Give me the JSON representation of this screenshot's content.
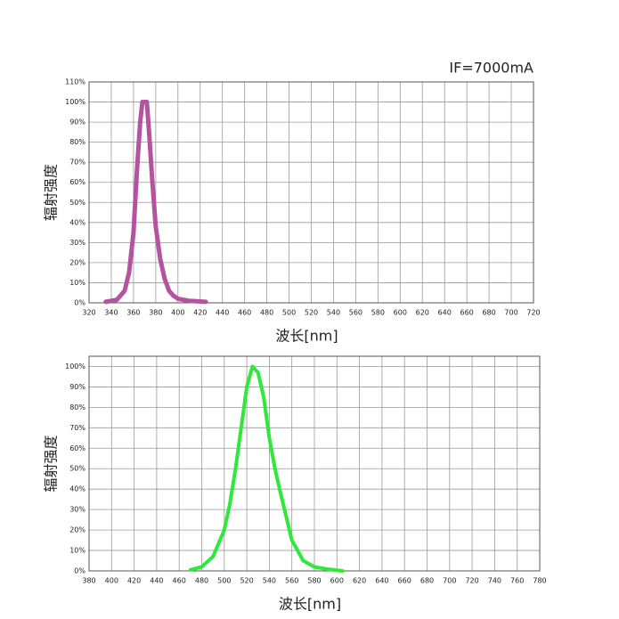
{
  "chart_data": [
    {
      "type": "line",
      "annotation": "IF=7000mA",
      "xlabel": "波长[nm]",
      "ylabel": "辐射强度",
      "color": "#b4539f",
      "x": [
        335,
        345,
        352,
        356,
        360,
        363,
        366,
        368,
        372,
        374,
        377,
        380,
        384,
        388,
        392,
        396,
        400,
        410,
        425
      ],
      "values": [
        0.5,
        1.5,
        6,
        15,
        35,
        65,
        90,
        100,
        100,
        85,
        60,
        38,
        22,
        12,
        6,
        3.5,
        2,
        1,
        0.5
      ],
      "xlim": [
        320,
        720
      ],
      "xticks": [
        320,
        340,
        360,
        380,
        400,
        420,
        440,
        460,
        480,
        500,
        520,
        540,
        560,
        580,
        600,
        620,
        640,
        660,
        680,
        700,
        720
      ],
      "ylim": [
        0,
        110
      ],
      "yticks": [
        {
          "value": 0,
          "label": "0%"
        },
        {
          "value": 10,
          "label": "10%"
        },
        {
          "value": 20,
          "label": "20%"
        },
        {
          "value": 30,
          "label": "30%"
        },
        {
          "value": 40,
          "label": "40%"
        },
        {
          "value": 50,
          "label": "50%"
        },
        {
          "value": 60,
          "label": "60%"
        },
        {
          "value": 70,
          "label": "70%"
        },
        {
          "value": 80,
          "label": "80%"
        },
        {
          "value": 90,
          "label": "90%"
        },
        {
          "value": 100,
          "label": "100%"
        },
        {
          "value": 110,
          "label": "110%"
        }
      ],
      "grid": true
    },
    {
      "type": "line",
      "xlabel": "波长[nm]",
      "ylabel": "辐射强度",
      "color": "#2ee83a",
      "x": [
        470,
        480,
        490,
        500,
        505,
        510,
        515,
        520,
        525,
        530,
        535,
        540,
        545,
        550,
        560,
        570,
        580,
        590,
        605
      ],
      "values": [
        0.5,
        2,
        7,
        20,
        33,
        50,
        70,
        90,
        100,
        97,
        85,
        65,
        50,
        38,
        15,
        5,
        2,
        1,
        0
      ],
      "xlim": [
        380,
        780
      ],
      "xticks": [
        380,
        400,
        420,
        440,
        460,
        480,
        500,
        520,
        540,
        560,
        580,
        600,
        620,
        640,
        660,
        680,
        700,
        720,
        740,
        760,
        780
      ],
      "ylim": [
        0,
        105
      ],
      "yticks": [
        {
          "value": 0,
          "label": "0%"
        },
        {
          "value": 10,
          "label": "10%"
        },
        {
          "value": 20,
          "label": "20%"
        },
        {
          "value": 30,
          "label": "30%"
        },
        {
          "value": 40,
          "label": "40%"
        },
        {
          "value": 50,
          "label": "50%"
        },
        {
          "value": 60,
          "label": "60%"
        },
        {
          "value": 70,
          "label": "70%"
        },
        {
          "value": 80,
          "label": "80%"
        },
        {
          "value": 90,
          "label": "90%"
        },
        {
          "value": 100,
          "label": "100%"
        }
      ],
      "grid": true
    }
  ]
}
